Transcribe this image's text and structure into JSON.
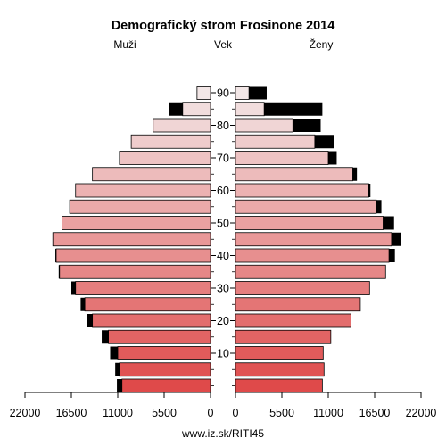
{
  "chart_data": {
    "type": "bar",
    "title": "Demografický strom Frosinone 2014",
    "left_label": "Muži",
    "center_label": "Vek",
    "right_label": "Ženy",
    "footer": "www.iz.sk/RITI45",
    "age_groups": [
      "0-4",
      "5-9",
      "10-14",
      "15-19",
      "20-24",
      "25-29",
      "30-34",
      "35-39",
      "40-44",
      "45-49",
      "50-54",
      "55-59",
      "60-64",
      "65-69",
      "70-74",
      "75-79",
      "80-84",
      "85-89",
      "90+"
    ],
    "age_tick_labels": [
      "10",
      "20",
      "30",
      "40",
      "50",
      "60",
      "70",
      "80",
      "90"
    ],
    "x_tick_labels_left": [
      "22000",
      "16500",
      "11000",
      "5500",
      "0"
    ],
    "x_tick_labels_right": [
      "0",
      "5500",
      "11000",
      "16500",
      "22000"
    ],
    "xlim": [
      0,
      22000
    ],
    "series": [
      {
        "name": "Muži",
        "side": "left",
        "values": [
          10500,
          10800,
          11000,
          12100,
          14000,
          14900,
          16000,
          17900,
          18300,
          18700,
          17600,
          16700,
          16000,
          14000,
          10800,
          9400,
          6800,
          3300,
          1600
        ],
        "outer_values": [
          11100,
          11300,
          11900,
          12900,
          14600,
          15400,
          16500,
          18000,
          18400,
          18700,
          17600,
          16700,
          16000,
          14000,
          10800,
          9400,
          6800,
          4900,
          1600
        ]
      },
      {
        "name": "Ženy",
        "side": "right",
        "values": [
          10300,
          10500,
          10400,
          11300,
          13700,
          14800,
          15900,
          17800,
          18200,
          18500,
          17500,
          16700,
          15800,
          13900,
          11000,
          9400,
          6800,
          3400,
          1600
        ],
        "outer_values": [
          10300,
          10500,
          10400,
          11300,
          13700,
          14800,
          15900,
          17800,
          18900,
          19600,
          18800,
          17300,
          16000,
          14400,
          12000,
          11700,
          10100,
          10300,
          3700
        ]
      }
    ],
    "colors": {
      "young": "#df4a4a",
      "old": "#f2e6e6",
      "overflow": "#000000",
      "outline": "#000000"
    }
  }
}
